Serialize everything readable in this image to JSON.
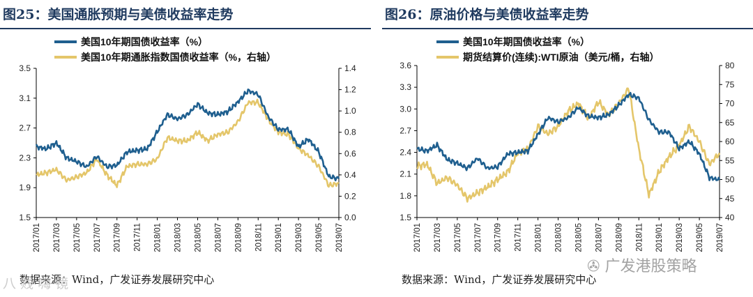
{
  "page": {
    "left_title": "图25：美国通胀预期与美债收益率走势",
    "right_title": "图26：原油价格与美债收益率走势",
    "source_text": "数据来源：Wind，广发证券发展研究中心",
    "watermark_left": "八 贱 嗨 镜",
    "watermark_right": "广发港股策略"
  },
  "colors": {
    "treasury": "#1f5f8f",
    "secondary": "#e4c66a",
    "title": "#1f3a5f",
    "axis": "#000000"
  },
  "chart_data": [
    {
      "type": "line",
      "title": "图25：美国通胀预期与美债收益率走势",
      "x_tick_labels": [
        "2017/01",
        "2017/03",
        "2017/05",
        "2017/07",
        "2017/09",
        "2017/11",
        "2018/01",
        "2018/03",
        "2018/05",
        "2018/07",
        "2018/09",
        "2018/11",
        "2019/01",
        "2019/03",
        "2019/05",
        "2019/07"
      ],
      "x_range": [
        "2017/01",
        "2019/07"
      ],
      "y_left": {
        "min": 1.5,
        "max": 3.5,
        "ticks": [
          "1.5",
          "1.9",
          "2.3",
          "2.7",
          "3.1",
          "3.5"
        ]
      },
      "y_right": {
        "min": 0.0,
        "max": 1.4,
        "ticks": [
          "0.0",
          "0.2",
          "0.4",
          "0.6",
          "0.8",
          "1.0",
          "1.2",
          "1.4"
        ]
      },
      "series": [
        {
          "name": "美国10年期国债收益率（%）",
          "axis": "left",
          "months": [
            "2017/01",
            "2017/02",
            "2017/03",
            "2017/04",
            "2017/05",
            "2017/06",
            "2017/07",
            "2017/08",
            "2017/09",
            "2017/10",
            "2017/11",
            "2017/12",
            "2018/01",
            "2018/02",
            "2018/03",
            "2018/04",
            "2018/05",
            "2018/06",
            "2018/07",
            "2018/08",
            "2018/09",
            "2018/10",
            "2018/11",
            "2018/12",
            "2019/01",
            "2019/02",
            "2019/03",
            "2019/04",
            "2019/05",
            "2019/06",
            "2019/07"
          ],
          "values": [
            2.45,
            2.42,
            2.5,
            2.3,
            2.25,
            2.18,
            2.32,
            2.18,
            2.2,
            2.38,
            2.4,
            2.42,
            2.65,
            2.88,
            2.82,
            2.88,
            3.02,
            2.9,
            2.88,
            2.92,
            3.05,
            3.2,
            3.15,
            2.85,
            2.68,
            2.68,
            2.45,
            2.55,
            2.38,
            2.05,
            2.02
          ]
        },
        {
          "name": "美国10年期通胀指数国债收益率（%，右轴）",
          "axis": "right",
          "months": [
            "2017/01",
            "2017/02",
            "2017/03",
            "2017/04",
            "2017/05",
            "2017/06",
            "2017/07",
            "2017/08",
            "2017/09",
            "2017/10",
            "2017/11",
            "2017/12",
            "2018/01",
            "2018/02",
            "2018/03",
            "2018/04",
            "2018/05",
            "2018/06",
            "2018/07",
            "2018/08",
            "2018/09",
            "2018/10",
            "2018/11",
            "2018/12",
            "2019/01",
            "2019/02",
            "2019/03",
            "2019/04",
            "2019/05",
            "2019/06",
            "2019/07"
          ],
          "values": [
            0.4,
            0.42,
            0.45,
            0.35,
            0.38,
            0.42,
            0.55,
            0.4,
            0.3,
            0.48,
            0.5,
            0.5,
            0.55,
            0.75,
            0.72,
            0.72,
            0.8,
            0.72,
            0.78,
            0.8,
            0.9,
            1.08,
            1.08,
            0.92,
            0.8,
            0.78,
            0.65,
            0.58,
            0.48,
            0.3,
            0.32
          ]
        }
      ]
    },
    {
      "type": "line",
      "title": "图26：原油价格与美债收益率走势",
      "x_tick_labels": [
        "2017/01",
        "2017/03",
        "2017/05",
        "2017/07",
        "2017/09",
        "2017/11",
        "2018/01",
        "2018/03",
        "2018/05",
        "2018/07",
        "2018/09",
        "2018/11",
        "2019/01",
        "2019/03",
        "2019/05",
        "2019/07"
      ],
      "x_range": [
        "2017/01",
        "2019/07"
      ],
      "y_left": {
        "min": 1.5,
        "max": 3.6,
        "ticks": [
          "1.5",
          "1.8",
          "2.1",
          "2.4",
          "2.7",
          "3.0",
          "3.3",
          "3.6"
        ]
      },
      "y_right": {
        "min": 40,
        "max": 80,
        "ticks": [
          "40",
          "45",
          "50",
          "55",
          "60",
          "65",
          "70",
          "75",
          "80"
        ]
      },
      "series": [
        {
          "name": "美国10年期国债收益率（%）",
          "axis": "left",
          "months": [
            "2017/01",
            "2017/02",
            "2017/03",
            "2017/04",
            "2017/05",
            "2017/06",
            "2017/07",
            "2017/08",
            "2017/09",
            "2017/10",
            "2017/11",
            "2017/12",
            "2018/01",
            "2018/02",
            "2018/03",
            "2018/04",
            "2018/05",
            "2018/06",
            "2018/07",
            "2018/08",
            "2018/09",
            "2018/10",
            "2018/11",
            "2018/12",
            "2019/01",
            "2019/02",
            "2019/03",
            "2019/04",
            "2019/05",
            "2019/06",
            "2019/07"
          ],
          "values": [
            2.45,
            2.42,
            2.5,
            2.3,
            2.25,
            2.18,
            2.32,
            2.18,
            2.2,
            2.38,
            2.4,
            2.42,
            2.65,
            2.88,
            2.82,
            2.88,
            3.02,
            2.9,
            2.88,
            2.92,
            3.05,
            3.2,
            3.15,
            2.85,
            2.68,
            2.68,
            2.45,
            2.55,
            2.38,
            2.05,
            2.02
          ]
        },
        {
          "name": "期货结算价(连续):WTI原油（美元/桶，右轴）",
          "axis": "right",
          "months": [
            "2017/01",
            "2017/02",
            "2017/03",
            "2017/04",
            "2017/05",
            "2017/06",
            "2017/07",
            "2017/08",
            "2017/09",
            "2017/10",
            "2017/11",
            "2017/12",
            "2018/01",
            "2018/02",
            "2018/03",
            "2018/04",
            "2018/05",
            "2018/06",
            "2018/07",
            "2018/08",
            "2018/09",
            "2018/10",
            "2018/11",
            "2018/12",
            "2019/01",
            "2019/02",
            "2019/03",
            "2019/04",
            "2019/05",
            "2019/06",
            "2019/07"
          ],
          "values": [
            53.5,
            54.0,
            49.0,
            50.5,
            48.5,
            45.0,
            46.5,
            48.0,
            50.0,
            52.0,
            57.0,
            58.0,
            64.0,
            62.0,
            64.0,
            68.0,
            70.0,
            66.0,
            70.5,
            67.0,
            70.0,
            74.0,
            58.0,
            46.0,
            52.0,
            56.0,
            59.0,
            64.0,
            60.0,
            54.0,
            57.0
          ]
        }
      ]
    }
  ]
}
